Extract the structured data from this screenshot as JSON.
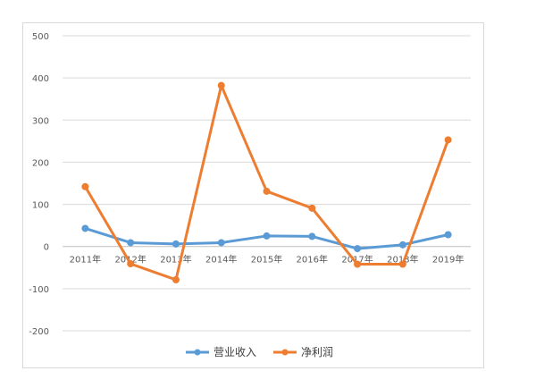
{
  "chart_data": {
    "type": "line",
    "categories": [
      "2011年",
      "2012年",
      "2013年",
      "2014年",
      "2015年",
      "2016年",
      "2017年",
      "2018年",
      "2019年"
    ],
    "series": [
      {
        "name": "营业收入",
        "color": "#5b9bd5",
        "values": [
          43,
          9,
          6,
          9,
          25,
          24,
          -5,
          4,
          28
        ]
      },
      {
        "name": "净利润",
        "color": "#ed7d31",
        "values": [
          142,
          -41,
          -79,
          382,
          131,
          91,
          -42,
          -42,
          253
        ]
      }
    ],
    "ylim": [
      -200,
      500
    ],
    "yticks": [
      -200,
      -100,
      0,
      100,
      200,
      300,
      400,
      500
    ],
    "grid": true,
    "legend": "bottom"
  }
}
